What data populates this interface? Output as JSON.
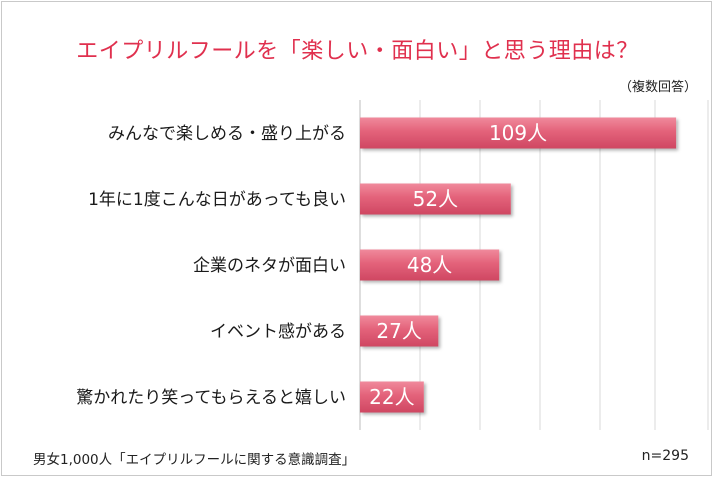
{
  "title": "エイプリルフールを「楽しい・面白い」と思う理由は？",
  "note": "（複数回答）",
  "footer": {
    "source": "男女1,000人「エイプリルフールに関する意識調査」",
    "n": "n=295"
  },
  "chart_data": {
    "type": "bar",
    "orientation": "horizontal",
    "categories": [
      "みんなで楽しめる・盛り上がる",
      "1年に1度こんな日があっても良い",
      "企業のネタが面白い",
      "イベント感がある",
      "驚かれたり笑ってもらえると嬉しい"
    ],
    "values": [
      109,
      52,
      48,
      27,
      22
    ],
    "data_labels": [
      "109人",
      "52人",
      "48人",
      "27人",
      "22人"
    ],
    "xlim": [
      0,
      120
    ],
    "grid": true,
    "bar_color": "#e06078"
  }
}
